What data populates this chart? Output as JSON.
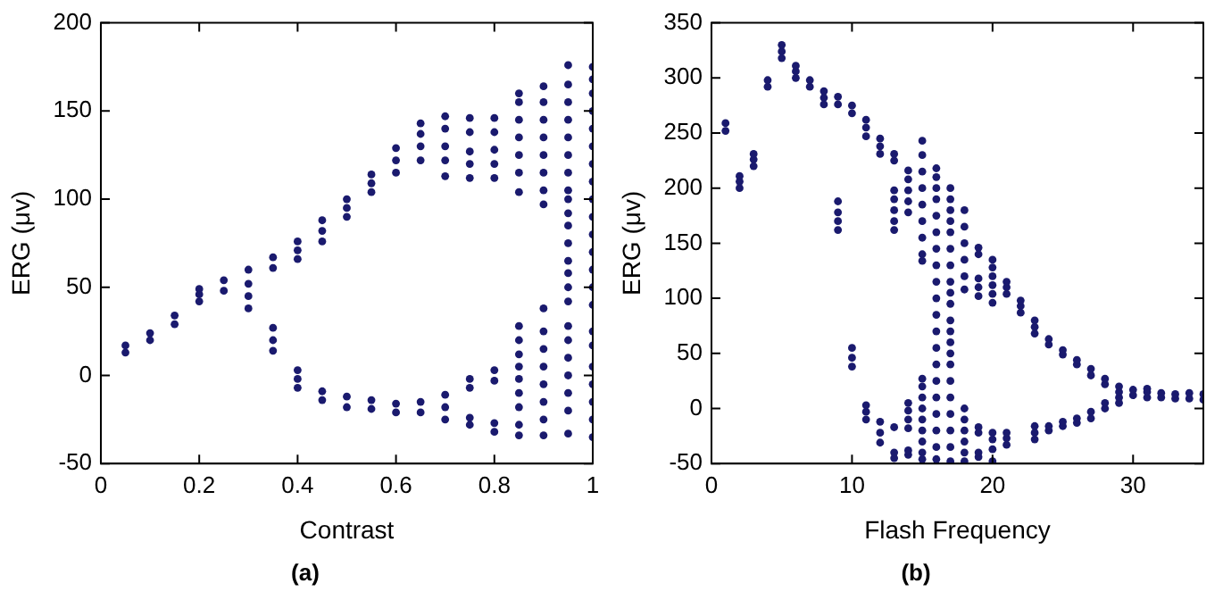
{
  "chart_data": [
    {
      "type": "scatter",
      "xlabel": "Contrast",
      "ylabel": "ERG (μv)",
      "annotations": [
        "(a)"
      ],
      "color": "#1a1a6e",
      "marker": "circle",
      "grid": false,
      "legend": false,
      "xlim": [
        0,
        1
      ],
      "xticks": [
        0,
        0.2,
        0.4,
        0.6,
        0.8,
        1
      ],
      "ylim": [
        -50,
        200
      ],
      "yticks": [
        -50,
        0,
        50,
        100,
        150,
        200
      ],
      "x": [
        0.05,
        0.05,
        0.1,
        0.1,
        0.15,
        0.15,
        0.2,
        0.2,
        0.2,
        0.25,
        0.25,
        0.3,
        0.3,
        0.3,
        0.3,
        0.35,
        0.35,
        0.35,
        0.35,
        0.35,
        0.4,
        0.4,
        0.4,
        0.4,
        0.4,
        0.4,
        0.45,
        0.45,
        0.45,
        0.45,
        0.45,
        0.5,
        0.5,
        0.5,
        0.5,
        0.5,
        0.55,
        0.55,
        0.55,
        0.55,
        0.55,
        0.6,
        0.6,
        0.6,
        0.6,
        0.6,
        0.65,
        0.65,
        0.65,
        0.65,
        0.65,
        0.65,
        0.7,
        0.7,
        0.7,
        0.7,
        0.7,
        0.7,
        0.7,
        0.7,
        0.75,
        0.75,
        0.75,
        0.75,
        0.75,
        0.75,
        0.75,
        0.75,
        0.75,
        0.8,
        0.8,
        0.8,
        0.8,
        0.8,
        0.8,
        0.8,
        0.8,
        0.8,
        0.85,
        0.85,
        0.85,
        0.85,
        0.85,
        0.85,
        0.85,
        0.85,
        0.85,
        0.85,
        0.85,
        0.85,
        0.85,
        0.85,
        0.85,
        0.85,
        0.9,
        0.9,
        0.9,
        0.9,
        0.9,
        0.9,
        0.9,
        0.9,
        0.9,
        0.9,
        0.9,
        0.9,
        0.9,
        0.9,
        0.9,
        0.9,
        0.95,
        0.95,
        0.95,
        0.95,
        0.95,
        0.95,
        0.95,
        0.95,
        0.95,
        0.95,
        0.95,
        0.95,
        0.95,
        0.95,
        0.95,
        0.95,
        0.95,
        0.95,
        0.95,
        0.95,
        0.95,
        0.95,
        0.95,
        1,
        1,
        1,
        1,
        1,
        1,
        1,
        1,
        1,
        1,
        1,
        1,
        1,
        1,
        1,
        1,
        1,
        1,
        1,
        1,
        1,
        1
      ],
      "values": [
        13,
        17,
        20,
        24,
        29,
        34,
        42,
        46,
        49,
        48,
        54,
        38,
        45,
        52,
        60,
        61,
        67,
        14,
        20,
        27,
        66,
        71,
        76,
        -7,
        -2,
        3,
        76,
        82,
        88,
        -14,
        -9,
        90,
        95,
        100,
        -18,
        -12,
        104,
        109,
        114,
        -19,
        -14,
        115,
        122,
        129,
        -21,
        -16,
        122,
        130,
        137,
        143,
        -21,
        -15,
        113,
        122,
        130,
        140,
        147,
        -25,
        -18,
        -11,
        112,
        120,
        127,
        138,
        146,
        -28,
        -24,
        -7,
        -2,
        112,
        120,
        128,
        138,
        146,
        -32,
        -27,
        -3,
        3,
        104,
        115,
        125,
        135,
        145,
        155,
        160,
        -34,
        -28,
        -18,
        -10,
        -2,
        5,
        12,
        20,
        28,
        97,
        105,
        115,
        125,
        135,
        145,
        155,
        164,
        38,
        -34,
        -25,
        -15,
        -5,
        5,
        15,
        25,
        176,
        165,
        155,
        145,
        135,
        125,
        115,
        105,
        100,
        92,
        85,
        75,
        65,
        58,
        50,
        42,
        28,
        20,
        10,
        0,
        -10,
        -20,
        -33,
        175,
        168,
        160,
        150,
        140,
        130,
        120,
        110,
        100,
        90,
        80,
        70,
        60,
        50,
        40,
        25,
        17,
        5,
        -5,
        -15,
        -25,
        -35
      ]
    },
    {
      "type": "scatter",
      "xlabel": "Flash Frequency",
      "ylabel": "ERG (μv)",
      "annotations": [
        "(b)"
      ],
      "color": "#1a1a6e",
      "marker": "circle",
      "grid": false,
      "legend": false,
      "xlim": [
        0,
        35
      ],
      "xticks": [
        0,
        10,
        20,
        30
      ],
      "ylim": [
        -50,
        350
      ],
      "yticks": [
        -50,
        0,
        50,
        100,
        150,
        200,
        250,
        300,
        350
      ],
      "x": [
        1,
        1,
        2,
        2,
        2,
        3,
        3,
        3,
        4,
        4,
        5,
        5,
        5,
        6,
        6,
        6,
        7,
        7,
        8,
        8,
        8,
        9,
        9,
        9,
        9,
        9,
        9,
        10,
        10,
        10,
        10,
        10,
        11,
        11,
        11,
        11,
        11,
        11,
        12,
        12,
        12,
        12,
        12,
        12,
        13,
        13,
        13,
        13,
        13,
        13,
        13,
        13,
        13,
        13,
        14,
        14,
        14,
        14,
        14,
        14,
        14,
        14,
        14,
        14,
        14,
        15,
        15,
        15,
        15,
        15,
        15,
        15,
        15,
        15,
        15,
        15,
        15,
        15,
        15,
        15,
        15,
        15,
        15,
        16,
        16,
        16,
        16,
        16,
        16,
        16,
        16,
        16,
        16,
        16,
        16,
        16,
        16,
        16,
        16,
        16,
        16,
        16,
        16,
        17,
        17,
        17,
        17,
        17,
        17,
        17,
        17,
        17,
        17,
        17,
        17,
        17,
        17,
        17,
        17,
        17,
        17,
        17,
        17,
        17,
        18,
        18,
        18,
        18,
        18,
        18,
        18,
        18,
        18,
        18,
        18,
        18,
        19,
        19,
        19,
        19,
        19,
        19,
        19,
        19,
        19,
        20,
        20,
        20,
        20,
        20,
        20,
        20,
        20,
        20,
        20,
        21,
        21,
        21,
        21,
        21,
        21,
        22,
        22,
        22,
        23,
        23,
        23,
        23,
        23,
        23,
        24,
        24,
        24,
        24,
        25,
        25,
        25,
        25,
        26,
        26,
        26,
        26,
        27,
        27,
        27,
        27,
        28,
        28,
        28,
        28,
        29,
        29,
        29,
        29,
        30,
        30,
        31,
        31,
        31,
        32,
        32,
        33,
        33,
        34,
        34,
        35,
        35
      ],
      "values": [
        252,
        259,
        200,
        206,
        211,
        220,
        226,
        231,
        292,
        298,
        318,
        324,
        330,
        300,
        306,
        311,
        292,
        298,
        276,
        282,
        288,
        276,
        283,
        162,
        170,
        178,
        188,
        268,
        275,
        38,
        46,
        55,
        247,
        255,
        262,
        -10,
        -3,
        3,
        231,
        238,
        245,
        -31,
        -22,
        -12,
        225,
        231,
        162,
        170,
        180,
        190,
        198,
        -45,
        -40,
        -17,
        178,
        188,
        198,
        208,
        216,
        -42,
        -38,
        -18,
        -10,
        -2,
        5,
        243,
        230,
        215,
        200,
        185,
        170,
        155,
        140,
        134,
        27,
        20,
        10,
        0,
        -10,
        -20,
        -30,
        -40,
        -46,
        218,
        210,
        200,
        190,
        175,
        160,
        145,
        130,
        115,
        100,
        85,
        70,
        55,
        40,
        25,
        10,
        -5,
        -20,
        -35,
        -46,
        200,
        190,
        180,
        170,
        160,
        145,
        130,
        115,
        105,
        95,
        80,
        70,
        60,
        50,
        40,
        25,
        10,
        -5,
        -20,
        -35,
        -48,
        108,
        120,
        135,
        150,
        165,
        180,
        -48,
        -40,
        -30,
        -20,
        -10,
        0,
        140,
        146,
        102,
        110,
        118,
        -44,
        -40,
        -22,
        -17,
        120,
        128,
        135,
        96,
        104,
        112,
        -48,
        -37,
        -28,
        -22,
        104,
        110,
        115,
        -33,
        -27,
        -22,
        87,
        93,
        98,
        68,
        74,
        80,
        -28,
        -22,
        -16,
        58,
        63,
        -20,
        -16,
        49,
        53,
        -16,
        -12,
        40,
        44,
        -13,
        -9,
        30,
        36,
        -9,
        -3,
        22,
        27,
        0,
        5,
        5,
        10,
        15,
        20,
        12,
        17,
        10,
        15,
        18,
        10,
        14,
        9,
        13,
        9,
        14,
        8,
        13
      ]
    }
  ]
}
